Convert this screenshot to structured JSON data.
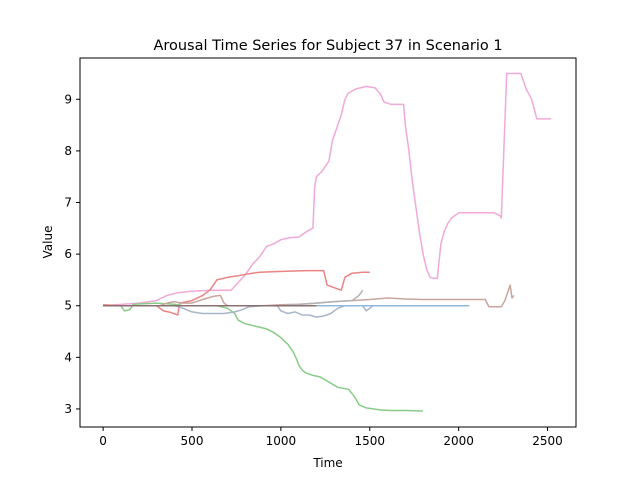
{
  "chart_data": {
    "type": "line",
    "title": "Arousal Time Series for Subject 37 in Scenario 1",
    "xlabel": "Time",
    "ylabel": "Value",
    "xlim": [
      -130,
      2660
    ],
    "ylim": [
      2.65,
      9.8
    ],
    "x_ticks": [
      0,
      500,
      1000,
      1500,
      2000,
      2500
    ],
    "y_ticks": [
      3,
      4,
      5,
      6,
      7,
      8,
      9
    ],
    "grid": false,
    "legend": "none",
    "series": [
      {
        "color": "#f1a9d8",
        "points": [
          [
            0,
            5.0
          ],
          [
            200,
            5.05
          ],
          [
            300,
            5.1
          ],
          [
            360,
            5.2
          ],
          [
            420,
            5.25
          ],
          [
            500,
            5.28
          ],
          [
            600,
            5.3
          ],
          [
            720,
            5.3
          ],
          [
            760,
            5.45
          ],
          [
            800,
            5.6
          ],
          [
            840,
            5.8
          ],
          [
            880,
            5.95
          ],
          [
            920,
            6.15
          ],
          [
            960,
            6.2
          ],
          [
            1000,
            6.28
          ],
          [
            1050,
            6.32
          ],
          [
            1100,
            6.33
          ],
          [
            1150,
            6.45
          ],
          [
            1180,
            6.5
          ],
          [
            1190,
            7.3
          ],
          [
            1200,
            7.5
          ],
          [
            1230,
            7.6
          ],
          [
            1250,
            7.7
          ],
          [
            1270,
            7.8
          ],
          [
            1290,
            8.2
          ],
          [
            1310,
            8.4
          ],
          [
            1340,
            8.7
          ],
          [
            1360,
            9.0
          ],
          [
            1380,
            9.12
          ],
          [
            1420,
            9.2
          ],
          [
            1480,
            9.25
          ],
          [
            1530,
            9.22
          ],
          [
            1560,
            9.1
          ],
          [
            1580,
            8.95
          ],
          [
            1620,
            8.9
          ],
          [
            1650,
            8.9
          ],
          [
            1690,
            8.9
          ],
          [
            1700,
            8.5
          ],
          [
            1720,
            8.0
          ],
          [
            1740,
            7.4
          ],
          [
            1760,
            6.9
          ],
          [
            1780,
            6.4
          ],
          [
            1800,
            6.0
          ],
          [
            1820,
            5.7
          ],
          [
            1840,
            5.55
          ],
          [
            1860,
            5.53
          ],
          [
            1880,
            5.53
          ],
          [
            1900,
            6.2
          ],
          [
            1920,
            6.45
          ],
          [
            1940,
            6.6
          ],
          [
            1960,
            6.7
          ],
          [
            2000,
            6.8
          ],
          [
            2100,
            6.8
          ],
          [
            2150,
            6.8
          ],
          [
            2200,
            6.8
          ],
          [
            2230,
            6.75
          ],
          [
            2240,
            6.7
          ],
          [
            2270,
            9.5
          ],
          [
            2350,
            9.5
          ],
          [
            2380,
            9.2
          ],
          [
            2410,
            9.0
          ],
          [
            2440,
            8.62
          ],
          [
            2480,
            8.62
          ],
          [
            2520,
            8.62
          ]
        ]
      },
      {
        "color": "#eb8484",
        "points": [
          [
            0,
            5.02
          ],
          [
            100,
            5.0
          ],
          [
            200,
            5.0
          ],
          [
            300,
            5.0
          ],
          [
            340,
            4.9
          ],
          [
            380,
            4.87
          ],
          [
            420,
            4.82
          ],
          [
            430,
            5.05
          ],
          [
            500,
            5.1
          ],
          [
            560,
            5.2
          ],
          [
            600,
            5.3
          ],
          [
            640,
            5.5
          ],
          [
            700,
            5.55
          ],
          [
            760,
            5.58
          ],
          [
            820,
            5.62
          ],
          [
            880,
            5.65
          ],
          [
            950,
            5.66
          ],
          [
            1050,
            5.67
          ],
          [
            1150,
            5.68
          ],
          [
            1240,
            5.68
          ],
          [
            1260,
            5.4
          ],
          [
            1300,
            5.35
          ],
          [
            1340,
            5.3
          ],
          [
            1360,
            5.55
          ],
          [
            1400,
            5.63
          ],
          [
            1460,
            5.65
          ],
          [
            1500,
            5.65
          ]
        ]
      },
      {
        "color": "#88cc88",
        "points": [
          [
            0,
            5.0
          ],
          [
            100,
            5.0
          ],
          [
            120,
            4.9
          ],
          [
            150,
            4.92
          ],
          [
            170,
            5.03
          ],
          [
            300,
            5.05
          ],
          [
            400,
            5.03
          ],
          [
            450,
            5.0
          ],
          [
            520,
            5.0
          ],
          [
            580,
            5.0
          ],
          [
            640,
            5.0
          ],
          [
            700,
            4.95
          ],
          [
            740,
            4.85
          ],
          [
            760,
            4.72
          ],
          [
            800,
            4.65
          ],
          [
            860,
            4.6
          ],
          [
            920,
            4.55
          ],
          [
            960,
            4.48
          ],
          [
            1000,
            4.38
          ],
          [
            1040,
            4.25
          ],
          [
            1070,
            4.1
          ],
          [
            1090,
            3.95
          ],
          [
            1100,
            3.85
          ],
          [
            1120,
            3.75
          ],
          [
            1140,
            3.7
          ],
          [
            1180,
            3.65
          ],
          [
            1220,
            3.62
          ],
          [
            1280,
            3.5
          ],
          [
            1320,
            3.42
          ],
          [
            1380,
            3.38
          ],
          [
            1400,
            3.3
          ],
          [
            1420,
            3.2
          ],
          [
            1440,
            3.08
          ],
          [
            1480,
            3.02
          ],
          [
            1520,
            3.0
          ],
          [
            1560,
            2.98
          ],
          [
            1620,
            2.97
          ],
          [
            1700,
            2.97
          ],
          [
            1800,
            2.96
          ]
        ]
      },
      {
        "color": "#a8b5c8",
        "points": [
          [
            0,
            5.0
          ],
          [
            200,
            5.0
          ],
          [
            300,
            5.0
          ],
          [
            400,
            5.0
          ],
          [
            450,
            4.95
          ],
          [
            500,
            4.88
          ],
          [
            560,
            4.85
          ],
          [
            620,
            4.85
          ],
          [
            680,
            4.85
          ],
          [
            740,
            4.88
          ],
          [
            780,
            4.92
          ],
          [
            820,
            4.98
          ],
          [
            900,
            5.0
          ],
          [
            980,
            5.0
          ],
          [
            1000,
            4.9
          ],
          [
            1040,
            4.85
          ],
          [
            1080,
            4.88
          ],
          [
            1120,
            4.82
          ],
          [
            1160,
            4.82
          ],
          [
            1200,
            4.78
          ],
          [
            1240,
            4.8
          ],
          [
            1280,
            4.85
          ],
          [
            1320,
            4.95
          ],
          [
            1360,
            5.0
          ],
          [
            1400,
            5.0
          ],
          [
            1460,
            5.0
          ],
          [
            1480,
            4.9
          ],
          [
            1500,
            4.95
          ],
          [
            1520,
            5.0
          ]
        ]
      },
      {
        "color": "#90b8de",
        "points": [
          [
            0,
            5.0
          ],
          [
            200,
            5.0
          ],
          [
            400,
            5.0
          ],
          [
            600,
            5.0
          ],
          [
            800,
            5.0
          ],
          [
            1000,
            5.0
          ],
          [
            1200,
            5.0
          ],
          [
            1400,
            5.0
          ],
          [
            1600,
            5.0
          ],
          [
            1800,
            5.0
          ],
          [
            2000,
            5.0
          ],
          [
            2060,
            5.0
          ]
        ]
      },
      {
        "color": "#c9a59e",
        "points": [
          [
            0,
            5.0
          ],
          [
            200,
            5.0
          ],
          [
            320,
            5.0
          ],
          [
            360,
            5.05
          ],
          [
            400,
            5.08
          ],
          [
            440,
            5.05
          ],
          [
            500,
            5.05
          ],
          [
            560,
            5.12
          ],
          [
            620,
            5.18
          ],
          [
            660,
            5.2
          ],
          [
            680,
            5.05
          ],
          [
            700,
            5.0
          ],
          [
            800,
            5.0
          ],
          [
            900,
            5.0
          ],
          [
            1000,
            5.02
          ],
          [
            1100,
            5.03
          ],
          [
            1200,
            5.05
          ],
          [
            1300,
            5.08
          ],
          [
            1400,
            5.1
          ],
          [
            1500,
            5.12
          ],
          [
            1600,
            5.15
          ],
          [
            1700,
            5.13
          ],
          [
            1800,
            5.12
          ],
          [
            1900,
            5.12
          ],
          [
            2000,
            5.12
          ],
          [
            2100,
            5.12
          ],
          [
            2150,
            5.12
          ],
          [
            2170,
            4.98
          ],
          [
            2240,
            4.98
          ],
          [
            2260,
            5.1
          ],
          [
            2280,
            5.3
          ],
          [
            2290,
            5.4
          ],
          [
            2300,
            5.15
          ],
          [
            2310,
            5.2
          ]
        ]
      },
      {
        "color": "#b3b3b3",
        "points": [
          [
            0,
            5.0
          ],
          [
            200,
            5.0
          ],
          [
            400,
            5.0
          ],
          [
            600,
            5.0
          ],
          [
            800,
            5.0
          ],
          [
            1000,
            5.0
          ],
          [
            1200,
            5.05
          ],
          [
            1300,
            5.08
          ],
          [
            1400,
            5.1
          ],
          [
            1440,
            5.2
          ],
          [
            1460,
            5.3
          ]
        ]
      },
      {
        "color": "#c5a7d8",
        "points": [
          [
            0,
            5.0
          ],
          [
            150,
            5.0
          ],
          [
            300,
            5.0
          ],
          [
            450,
            5.0
          ],
          [
            600,
            5.0
          ],
          [
            750,
            5.0
          ],
          [
            900,
            5.0
          ],
          [
            1000,
            5.0
          ]
        ]
      },
      {
        "color": "#8a7070",
        "points": [
          [
            0,
            5.0
          ],
          [
            150,
            5.0
          ],
          [
            300,
            5.0
          ],
          [
            450,
            5.0
          ],
          [
            600,
            5.0
          ],
          [
            750,
            5.0
          ],
          [
            900,
            5.0
          ],
          [
            1050,
            5.0
          ],
          [
            1200,
            5.0
          ]
        ]
      }
    ]
  }
}
